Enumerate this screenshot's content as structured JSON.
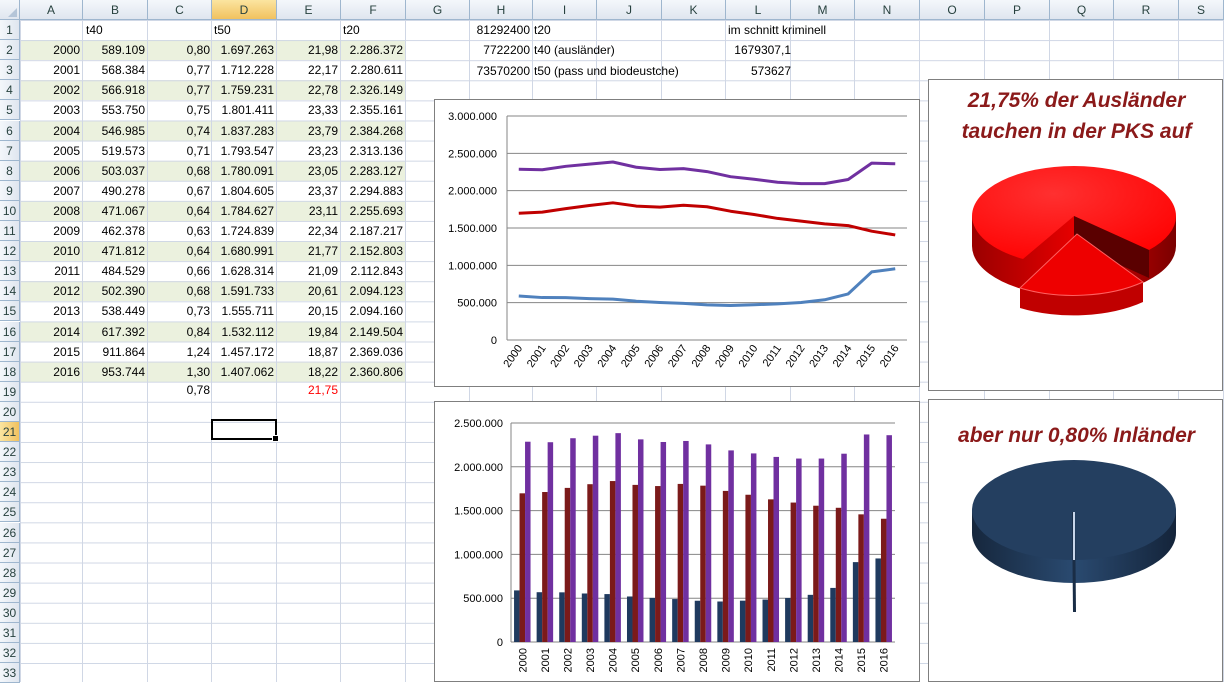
{
  "columns": [
    "A",
    "B",
    "C",
    "D",
    "E",
    "F",
    "G",
    "H",
    "I",
    "J",
    "K",
    "L",
    "M",
    "N",
    "O",
    "P",
    "Q",
    "R",
    "S"
  ],
  "rows": [
    "1",
    "2",
    "3",
    "4",
    "5",
    "6",
    "7",
    "8",
    "9",
    "10",
    "11",
    "12",
    "13",
    "14",
    "15",
    "16",
    "17",
    "18",
    "19",
    "20",
    "21",
    "22",
    "23",
    "24",
    "25",
    "26",
    "27",
    "28",
    "29",
    "30",
    "31",
    "32",
    "33"
  ],
  "header_row": {
    "b": "t40",
    "d": "t50",
    "f": "t20"
  },
  "table": [
    {
      "year": "2000",
      "b": "589.109",
      "c": "0,80",
      "d": "1.697.263",
      "e": "21,98",
      "f": "2.286.372"
    },
    {
      "year": "2001",
      "b": "568.384",
      "c": "0,77",
      "d": "1.712.228",
      "e": "22,17",
      "f": "2.280.611"
    },
    {
      "year": "2002",
      "b": "566.918",
      "c": "0,77",
      "d": "1.759.231",
      "e": "22,78",
      "f": "2.326.149"
    },
    {
      "year": "2003",
      "b": "553.750",
      "c": "0,75",
      "d": "1.801.411",
      "e": "23,33",
      "f": "2.355.161"
    },
    {
      "year": "2004",
      "b": "546.985",
      "c": "0,74",
      "d": "1.837.283",
      "e": "23,79",
      "f": "2.384.268"
    },
    {
      "year": "2005",
      "b": "519.573",
      "c": "0,71",
      "d": "1.793.547",
      "e": "23,23",
      "f": "2.313.136"
    },
    {
      "year": "2006",
      "b": "503.037",
      "c": "0,68",
      "d": "1.780.091",
      "e": "23,05",
      "f": "2.283.127"
    },
    {
      "year": "2007",
      "b": "490.278",
      "c": "0,67",
      "d": "1.804.605",
      "e": "23,37",
      "f": "2.294.883"
    },
    {
      "year": "2008",
      "b": "471.067",
      "c": "0,64",
      "d": "1.784.627",
      "e": "23,11",
      "f": "2.255.693"
    },
    {
      "year": "2009",
      "b": "462.378",
      "c": "0,63",
      "d": "1.724.839",
      "e": "22,34",
      "f": "2.187.217"
    },
    {
      "year": "2010",
      "b": "471.812",
      "c": "0,64",
      "d": "1.680.991",
      "e": "21,77",
      "f": "2.152.803"
    },
    {
      "year": "2011",
      "b": "484.529",
      "c": "0,66",
      "d": "1.628.314",
      "e": "21,09",
      "f": "2.112.843"
    },
    {
      "year": "2012",
      "b": "502.390",
      "c": "0,68",
      "d": "1.591.733",
      "e": "20,61",
      "f": "2.094.123"
    },
    {
      "year": "2013",
      "b": "538.449",
      "c": "0,73",
      "d": "1.555.711",
      "e": "20,15",
      "f": "2.094.160"
    },
    {
      "year": "2014",
      "b": "617.392",
      "c": "0,84",
      "d": "1.532.112",
      "e": "19,84",
      "f": "2.149.504"
    },
    {
      "year": "2015",
      "b": "911.864",
      "c": "1,24",
      "d": "1.457.172",
      "e": "18,87",
      "f": "2.369.036"
    },
    {
      "year": "2016",
      "b": "953.744",
      "c": "1,30",
      "d": "1.407.062",
      "e": "18,22",
      "f": "2.360.806"
    }
  ],
  "row19": {
    "c": "0,78",
    "e": "21,75"
  },
  "side_table": [
    {
      "h": "81292400",
      "i": "t20",
      "l": "im schnitt kriminell"
    },
    {
      "h": "7722200",
      "i": "t40 (ausländer)",
      "l": "1679307,1"
    },
    {
      "h": "73570200",
      "i": "t50 (pass und biodeustche)",
      "l": "573627"
    }
  ],
  "callouts": {
    "top": "21,75% der Ausländer tauchen in der PKS auf",
    "bottom": "aber nur 0,80% Inländer"
  },
  "colors": {
    "t20": "#7030a0",
    "t50": "#c00000",
    "t40": "#4f81bd",
    "bar_t40": "#1f3a5f",
    "bar_t50": "#7b1a1a",
    "pie_red": "#ff0000",
    "pie_navy": "#243f60"
  },
  "chart_data": [
    {
      "type": "line",
      "categories": [
        "2000",
        "2001",
        "2002",
        "2003",
        "2004",
        "2005",
        "2006",
        "2007",
        "2008",
        "2009",
        "2010",
        "2011",
        "2012",
        "2013",
        "2014",
        "2015",
        "2016"
      ],
      "y_ticks": [
        "0",
        "500.000",
        "1.000.000",
        "1.500.000",
        "2.000.000",
        "2.500.000",
        "3.000.000"
      ],
      "ylim": [
        0,
        3000000
      ],
      "grid": true,
      "series": [
        {
          "values": [
            589109,
            568384,
            566918,
            553750,
            546985,
            519573,
            503037,
            490278,
            471067,
            462378,
            471812,
            484529,
            502390,
            538449,
            617392,
            911864,
            953744
          ]
        },
        {
          "values": [
            1697263,
            1712228,
            1759231,
            1801411,
            1837283,
            1793547,
            1780091,
            1804605,
            1784627,
            1724839,
            1680991,
            1628314,
            1591733,
            1555711,
            1532112,
            1457172,
            1407062
          ]
        },
        {
          "values": [
            2286372,
            2280611,
            2326149,
            2355161,
            2384268,
            2313136,
            2283127,
            2294883,
            2255693,
            2187217,
            2152803,
            2112843,
            2094123,
            2094160,
            2149504,
            2369036,
            2360806
          ]
        }
      ]
    },
    {
      "type": "bar",
      "categories": [
        "2000",
        "2001",
        "2002",
        "2003",
        "2004",
        "2005",
        "2006",
        "2007",
        "2008",
        "2009",
        "2010",
        "2011",
        "2012",
        "2013",
        "2014",
        "2015",
        "2016"
      ],
      "y_ticks": [
        "0",
        "500.000",
        "1.000.000",
        "1.500.000",
        "2.000.000",
        "2.500.000"
      ],
      "ylim": [
        0,
        2500000
      ],
      "grid": true,
      "series": [
        {
          "values": [
            589109,
            568384,
            566918,
            553750,
            546985,
            519573,
            503037,
            490278,
            471067,
            462378,
            471812,
            484529,
            502390,
            538449,
            617392,
            911864,
            953744
          ]
        },
        {
          "values": [
            1697263,
            1712228,
            1759231,
            1801411,
            1837283,
            1793547,
            1780091,
            1804605,
            1784627,
            1724839,
            1680991,
            1628314,
            1591733,
            1555711,
            1532112,
            1457172,
            1407062
          ]
        },
        {
          "values": [
            2286372,
            2280611,
            2326149,
            2355161,
            2384268,
            2313136,
            2283127,
            2294883,
            2255693,
            2187217,
            2152803,
            2112843,
            2094123,
            2094160,
            2149504,
            2369036,
            2360806
          ]
        }
      ]
    },
    {
      "type": "pie",
      "values": [
        21.75,
        78.25
      ],
      "exploded": [
        true,
        false
      ]
    },
    {
      "type": "pie",
      "values": [
        0.8,
        99.2
      ],
      "exploded": [
        true,
        false
      ]
    }
  ]
}
